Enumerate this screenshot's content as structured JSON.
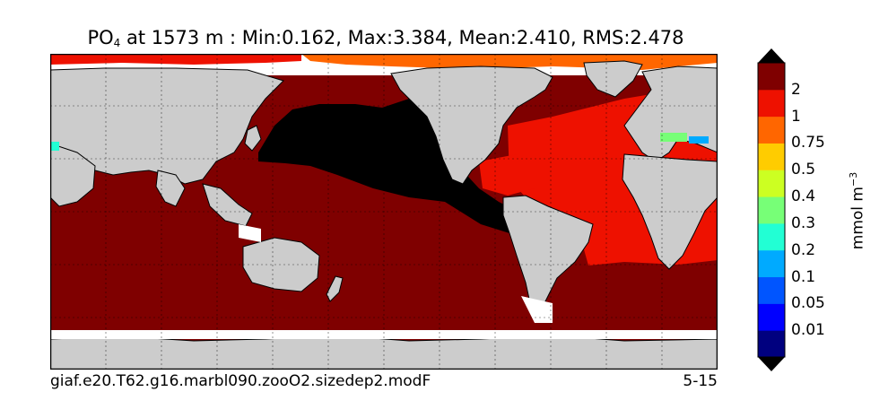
{
  "title": {
    "variable": "PO",
    "variable_subscript": "4",
    "rest": " at 1573 m : Min:0.162, Max:3.384, Mean:2.410, RMS:2.478"
  },
  "caption": {
    "case_name": "giaf.e20.T62.g16.marbl090.zooO2.sizedep2.modF",
    "years": "5-15"
  },
  "colorbar": {
    "units_main": "mmol m",
    "units_exp": "−3",
    "levels": [
      "0.01",
      "0.05",
      "0.1",
      "0.2",
      "0.3",
      "0.4",
      "0.5",
      "0.75",
      "1",
      "2"
    ],
    "colors": [
      "#00007f",
      "#0000ff",
      "#0055ff",
      "#00aaff",
      "#22ffd4",
      "#77ff77",
      "#ccff22",
      "#ffcc00",
      "#ff6600",
      "#ee1100",
      "#7f0000"
    ]
  },
  "map_colors": {
    "land": "#cccccc",
    "no_data": "#ffffff",
    "pacific_deep": "#000000",
    "high_value": "#7f0000",
    "atlantic": "#ee1100",
    "arctic_orange": "#ff6600"
  }
}
